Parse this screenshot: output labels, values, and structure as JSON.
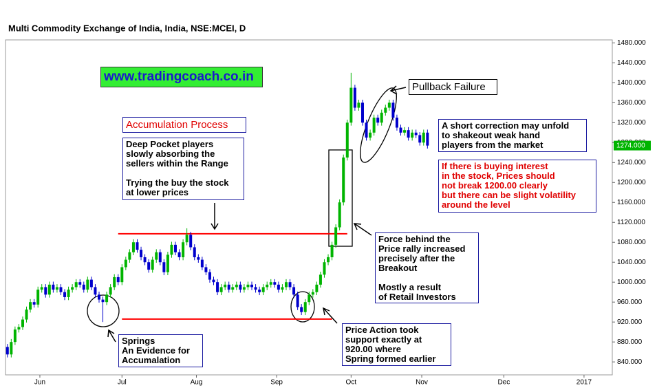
{
  "chart_data": {
    "type": "candlestick",
    "title": "Multi Commodity Exchange of India, India, NSE:MCEI, D",
    "up_color": "#00b400",
    "down_color": "#0000cc",
    "xlim": [
      -0.5,
      158.4
    ],
    "xticks": [
      {
        "value": 8.5,
        "label": "Jun"
      },
      {
        "value": 30,
        "label": "Jul"
      },
      {
        "value": 49.5,
        "label": "Aug"
      },
      {
        "value": 70.5,
        "label": "Sep"
      },
      {
        "value": 90,
        "label": "Oct"
      },
      {
        "value": 108.5,
        "label": "Nov"
      },
      {
        "value": 130,
        "label": "Dec"
      },
      {
        "value": 151,
        "label": "2017"
      }
    ],
    "ylim": [
      814,
      1486
    ],
    "yticks": [
      {
        "value": 840,
        "label": "840.000"
      },
      {
        "value": 880,
        "label": "880.000"
      },
      {
        "value": 920,
        "label": "920.000"
      },
      {
        "value": 960,
        "label": "960.000"
      },
      {
        "value": 1000,
        "label": "1000.000"
      },
      {
        "value": 1040,
        "label": "1040.000"
      },
      {
        "value": 1080,
        "label": "1080.000"
      },
      {
        "value": 1120,
        "label": "1120.000"
      },
      {
        "value": 1160,
        "label": "1160.000"
      },
      {
        "value": 1200,
        "label": "1200.000"
      },
      {
        "value": 1240,
        "label": "1240.000"
      },
      {
        "value": 1280,
        "label": "1280.000"
      },
      {
        "value": 1320,
        "label": "1320.000"
      },
      {
        "value": 1360,
        "label": "1360.000"
      },
      {
        "value": 1400,
        "label": "1400.000"
      },
      {
        "value": 1440,
        "label": "1440.000"
      },
      {
        "value": 1480,
        "label": "1480.000"
      }
    ],
    "last_price": {
      "value": 1274,
      "label": "1274.000",
      "color": "#00b400"
    },
    "hlines": [
      {
        "value": 1097,
        "from": 29,
        "to": 89,
        "color": "#ff0000"
      },
      {
        "value": 926,
        "from": 30,
        "to": 85,
        "color": "#ff0000"
      }
    ],
    "open": [
      870,
      855,
      880,
      905,
      910,
      925,
      945,
      960,
      955,
      985,
      990,
      975,
      995,
      985,
      990,
      980,
      970,
      985,
      990,
      1000,
      995,
      985,
      1005,
      990,
      975,
      965,
      960,
      975,
      990,
      1010,
      1000,
      1030,
      1045,
      1060,
      1080,
      1065,
      1050,
      1040,
      1025,
      1045,
      1060,
      1040,
      1020,
      1055,
      1075,
      1060,
      1050,
      1080,
      1095,
      1070,
      1050,
      1045,
      1030,
      1020,
      1005,
      1000,
      980,
      990,
      995,
      985,
      990,
      995,
      985,
      990,
      995,
      990,
      985,
      980,
      990,
      995,
      1000,
      995,
      985,
      990,
      1000,
      990,
      975,
      950,
      940,
      960,
      975,
      980,
      995,
      1015,
      1040,
      1050,
      1075,
      1110,
      1160,
      1250,
      1320,
      1390,
      1350,
      1360,
      1320,
      1290,
      1300,
      1330,
      1320,
      1340,
      1350,
      1360,
      1330,
      1310,
      1300,
      1305,
      1290,
      1300,
      1295,
      1280,
      1300
    ],
    "high": [
      876,
      886,
      911,
      916,
      931,
      951,
      966,
      966,
      991,
      996,
      996,
      1001,
      1001,
      996,
      996,
      986,
      991,
      996,
      1006,
      1006,
      1001,
      1011,
      1011,
      996,
      981,
      971,
      981,
      996,
      1016,
      1016,
      1036,
      1051,
      1066,
      1086,
      1086,
      1071,
      1056,
      1046,
      1051,
      1066,
      1066,
      1046,
      1061,
      1081,
      1081,
      1066,
      1086,
      1108,
      1101,
      1076,
      1056,
      1051,
      1036,
      1026,
      1011,
      1006,
      996,
      1001,
      1001,
      996,
      1001,
      1001,
      996,
      1001,
      1001,
      996,
      991,
      996,
      1001,
      1006,
      1006,
      1001,
      996,
      1006,
      1006,
      996,
      981,
      956,
      966,
      981,
      986,
      1001,
      1021,
      1046,
      1056,
      1081,
      1116,
      1166,
      1256,
      1326,
      1420,
      1396,
      1366,
      1366,
      1326,
      1306,
      1336,
      1336,
      1346,
      1356,
      1366,
      1366,
      1336,
      1316,
      1311,
      1311,
      1306,
      1306,
      1301,
      1306,
      1306
    ],
    "low": [
      849,
      849,
      874,
      899,
      904,
      919,
      939,
      949,
      949,
      979,
      969,
      969,
      979,
      979,
      974,
      964,
      964,
      979,
      984,
      989,
      979,
      979,
      984,
      969,
      959,
      920,
      954,
      969,
      984,
      994,
      994,
      1024,
      1039,
      1054,
      1059,
      1044,
      1034,
      1019,
      1019,
      1039,
      1034,
      1014,
      1014,
      1049,
      1054,
      1044,
      1044,
      1074,
      1064,
      1044,
      1039,
      1024,
      1014,
      999,
      994,
      974,
      974,
      984,
      979,
      979,
      984,
      979,
      979,
      984,
      984,
      979,
      974,
      974,
      984,
      989,
      989,
      979,
      979,
      984,
      984,
      969,
      944,
      934,
      934,
      954,
      969,
      974,
      989,
      1009,
      1034,
      1044,
      1069,
      1104,
      1154,
      1244,
      1314,
      1344,
      1344,
      1314,
      1284,
      1284,
      1294,
      1314,
      1314,
      1334,
      1344,
      1324,
      1304,
      1294,
      1294,
      1284,
      1284,
      1289,
      1274,
      1274,
      1268
    ],
    "close": [
      855,
      880,
      905,
      910,
      925,
      945,
      960,
      955,
      985,
      990,
      975,
      995,
      985,
      990,
      980,
      970,
      985,
      990,
      1000,
      995,
      985,
      1005,
      990,
      975,
      965,
      960,
      975,
      990,
      1010,
      1000,
      1030,
      1045,
      1060,
      1080,
      1065,
      1050,
      1040,
      1025,
      1045,
      1060,
      1040,
      1020,
      1055,
      1075,
      1060,
      1050,
      1080,
      1095,
      1070,
      1050,
      1045,
      1030,
      1020,
      1005,
      1000,
      980,
      990,
      995,
      985,
      990,
      995,
      985,
      990,
      995,
      990,
      985,
      980,
      990,
      995,
      1000,
      995,
      985,
      990,
      1000,
      990,
      975,
      950,
      940,
      960,
      975,
      980,
      995,
      1015,
      1040,
      1050,
      1075,
      1110,
      1160,
      1250,
      1320,
      1390,
      1350,
      1360,
      1320,
      1290,
      1300,
      1330,
      1320,
      1340,
      1350,
      1360,
      1330,
      1310,
      1300,
      1305,
      1290,
      1300,
      1295,
      1280,
      1300,
      1274
    ],
    "annotations": [
      {
        "paragraphs": [
          [
            "www.tradingcoach.co.in"
          ]
        ]
      },
      {
        "paragraphs": [
          [
            "Accumulation Process"
          ]
        ]
      },
      {
        "paragraphs": [
          [
            "Deep Pocket players",
            "slowly absorbing the",
            "sellers within the Range"
          ],
          [
            "Trying the buy the stock",
            "at lower prices"
          ]
        ]
      },
      {
        "paragraphs": [
          [
            "Springs",
            "An Evidence for",
            "Accumalation"
          ]
        ]
      },
      {
        "paragraphs": [
          [
            "Price Action took",
            "support exactly at",
            "920.00 where",
            "Spring formed earlier"
          ]
        ]
      },
      {
        "paragraphs": [
          [
            "Force behind the",
            "Price rally increased",
            "precisely after the",
            "Breakout"
          ],
          [
            "Mostly a result",
            "of Retail Investors"
          ]
        ]
      },
      {
        "paragraphs": [
          [
            "Pullback Failure"
          ]
        ]
      },
      {
        "paragraphs": [
          [
            "A short correction may unfold",
            "to shakeout weak hand",
            "players from the market"
          ]
        ]
      },
      {
        "paragraphs": [
          [
            "If there is buying interest",
            "in the stock, Prices should",
            "not break 1200.00 clearly",
            "but there can be slight volatility",
            "around the level"
          ]
        ]
      }
    ]
  }
}
